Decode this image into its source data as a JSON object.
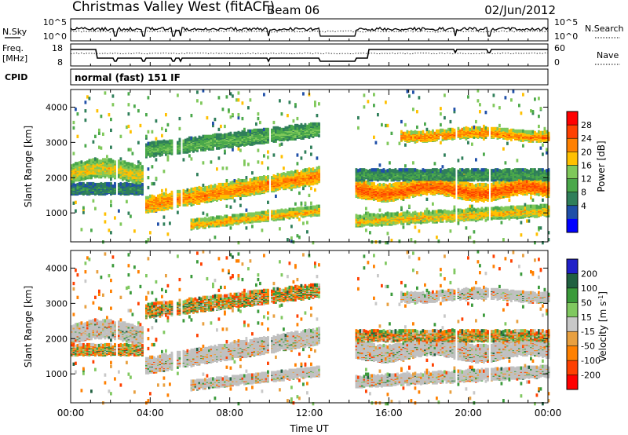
{
  "header": {
    "station": "Christmas Valley West (fitACF)",
    "beam": "Beam 06",
    "date": "02/Jun/2012"
  },
  "nsky_panel": {
    "left_label": "N.Sky",
    "right_label": "N.Search",
    "left_ticks": [
      "10^5",
      "10^0"
    ],
    "right_ticks": [
      "10^5",
      "10^0"
    ]
  },
  "freq_panel": {
    "left_label_line1": "Freq.",
    "left_label_line2": "[MHz]",
    "right_label": "Nave",
    "left_ticks": [
      "18",
      "8"
    ],
    "right_ticks": [
      "60",
      "0"
    ]
  },
  "cpid": {
    "label": "CPID",
    "mode": "normal (fast) 151 IF"
  },
  "colors": {
    "power": [
      "#0000ff",
      "#1f4fa8",
      "#2f7f5a",
      "#4aa84a",
      "#7fc85a",
      "#ffc000",
      "#ff8000",
      "#ff4000",
      "#ff0000"
    ],
    "velocity": [
      "#2020c8",
      "#206040",
      "#3a9a3a",
      "#80c860",
      "#c8c8c8",
      "#e8a040",
      "#ff8000",
      "#ff4000",
      "#ff0000"
    ],
    "ground_scatter": "#c0c0c0"
  },
  "chart_data": [
    {
      "type": "heatmap",
      "name": "power",
      "ylabel": "Slant Range [km]",
      "yticks": [
        1000,
        2000,
        3000,
        4000
      ],
      "ylim": [
        180,
        4500
      ],
      "xlim_hours": [
        0,
        24
      ],
      "colorbar": {
        "label": "Power [dB]",
        "ticks": [
          "28",
          "24",
          "20",
          "16",
          "12",
          "8",
          "4"
        ],
        "range": [
          0,
          32
        ]
      }
    },
    {
      "type": "heatmap",
      "name": "velocity",
      "ylabel": "Slant Range [km]",
      "xlabel": "Time UT",
      "xticks": [
        "00:00",
        "04:00",
        "08:00",
        "12:00",
        "16:00",
        "20:00",
        "00:00"
      ],
      "yticks": [
        1000,
        2000,
        3000,
        4000
      ],
      "ylim": [
        180,
        4500
      ],
      "xlim_hours": [
        0,
        24
      ],
      "colorbar": {
        "label_main": "Velocity",
        "label_units": "[m s",
        "label_exp": "-1",
        "label_close": "]",
        "ticks": [
          "200",
          "100",
          "50",
          "15",
          "-15",
          "-50",
          "-100",
          "-200"
        ],
        "range": [
          -250,
          250
        ]
      }
    }
  ]
}
